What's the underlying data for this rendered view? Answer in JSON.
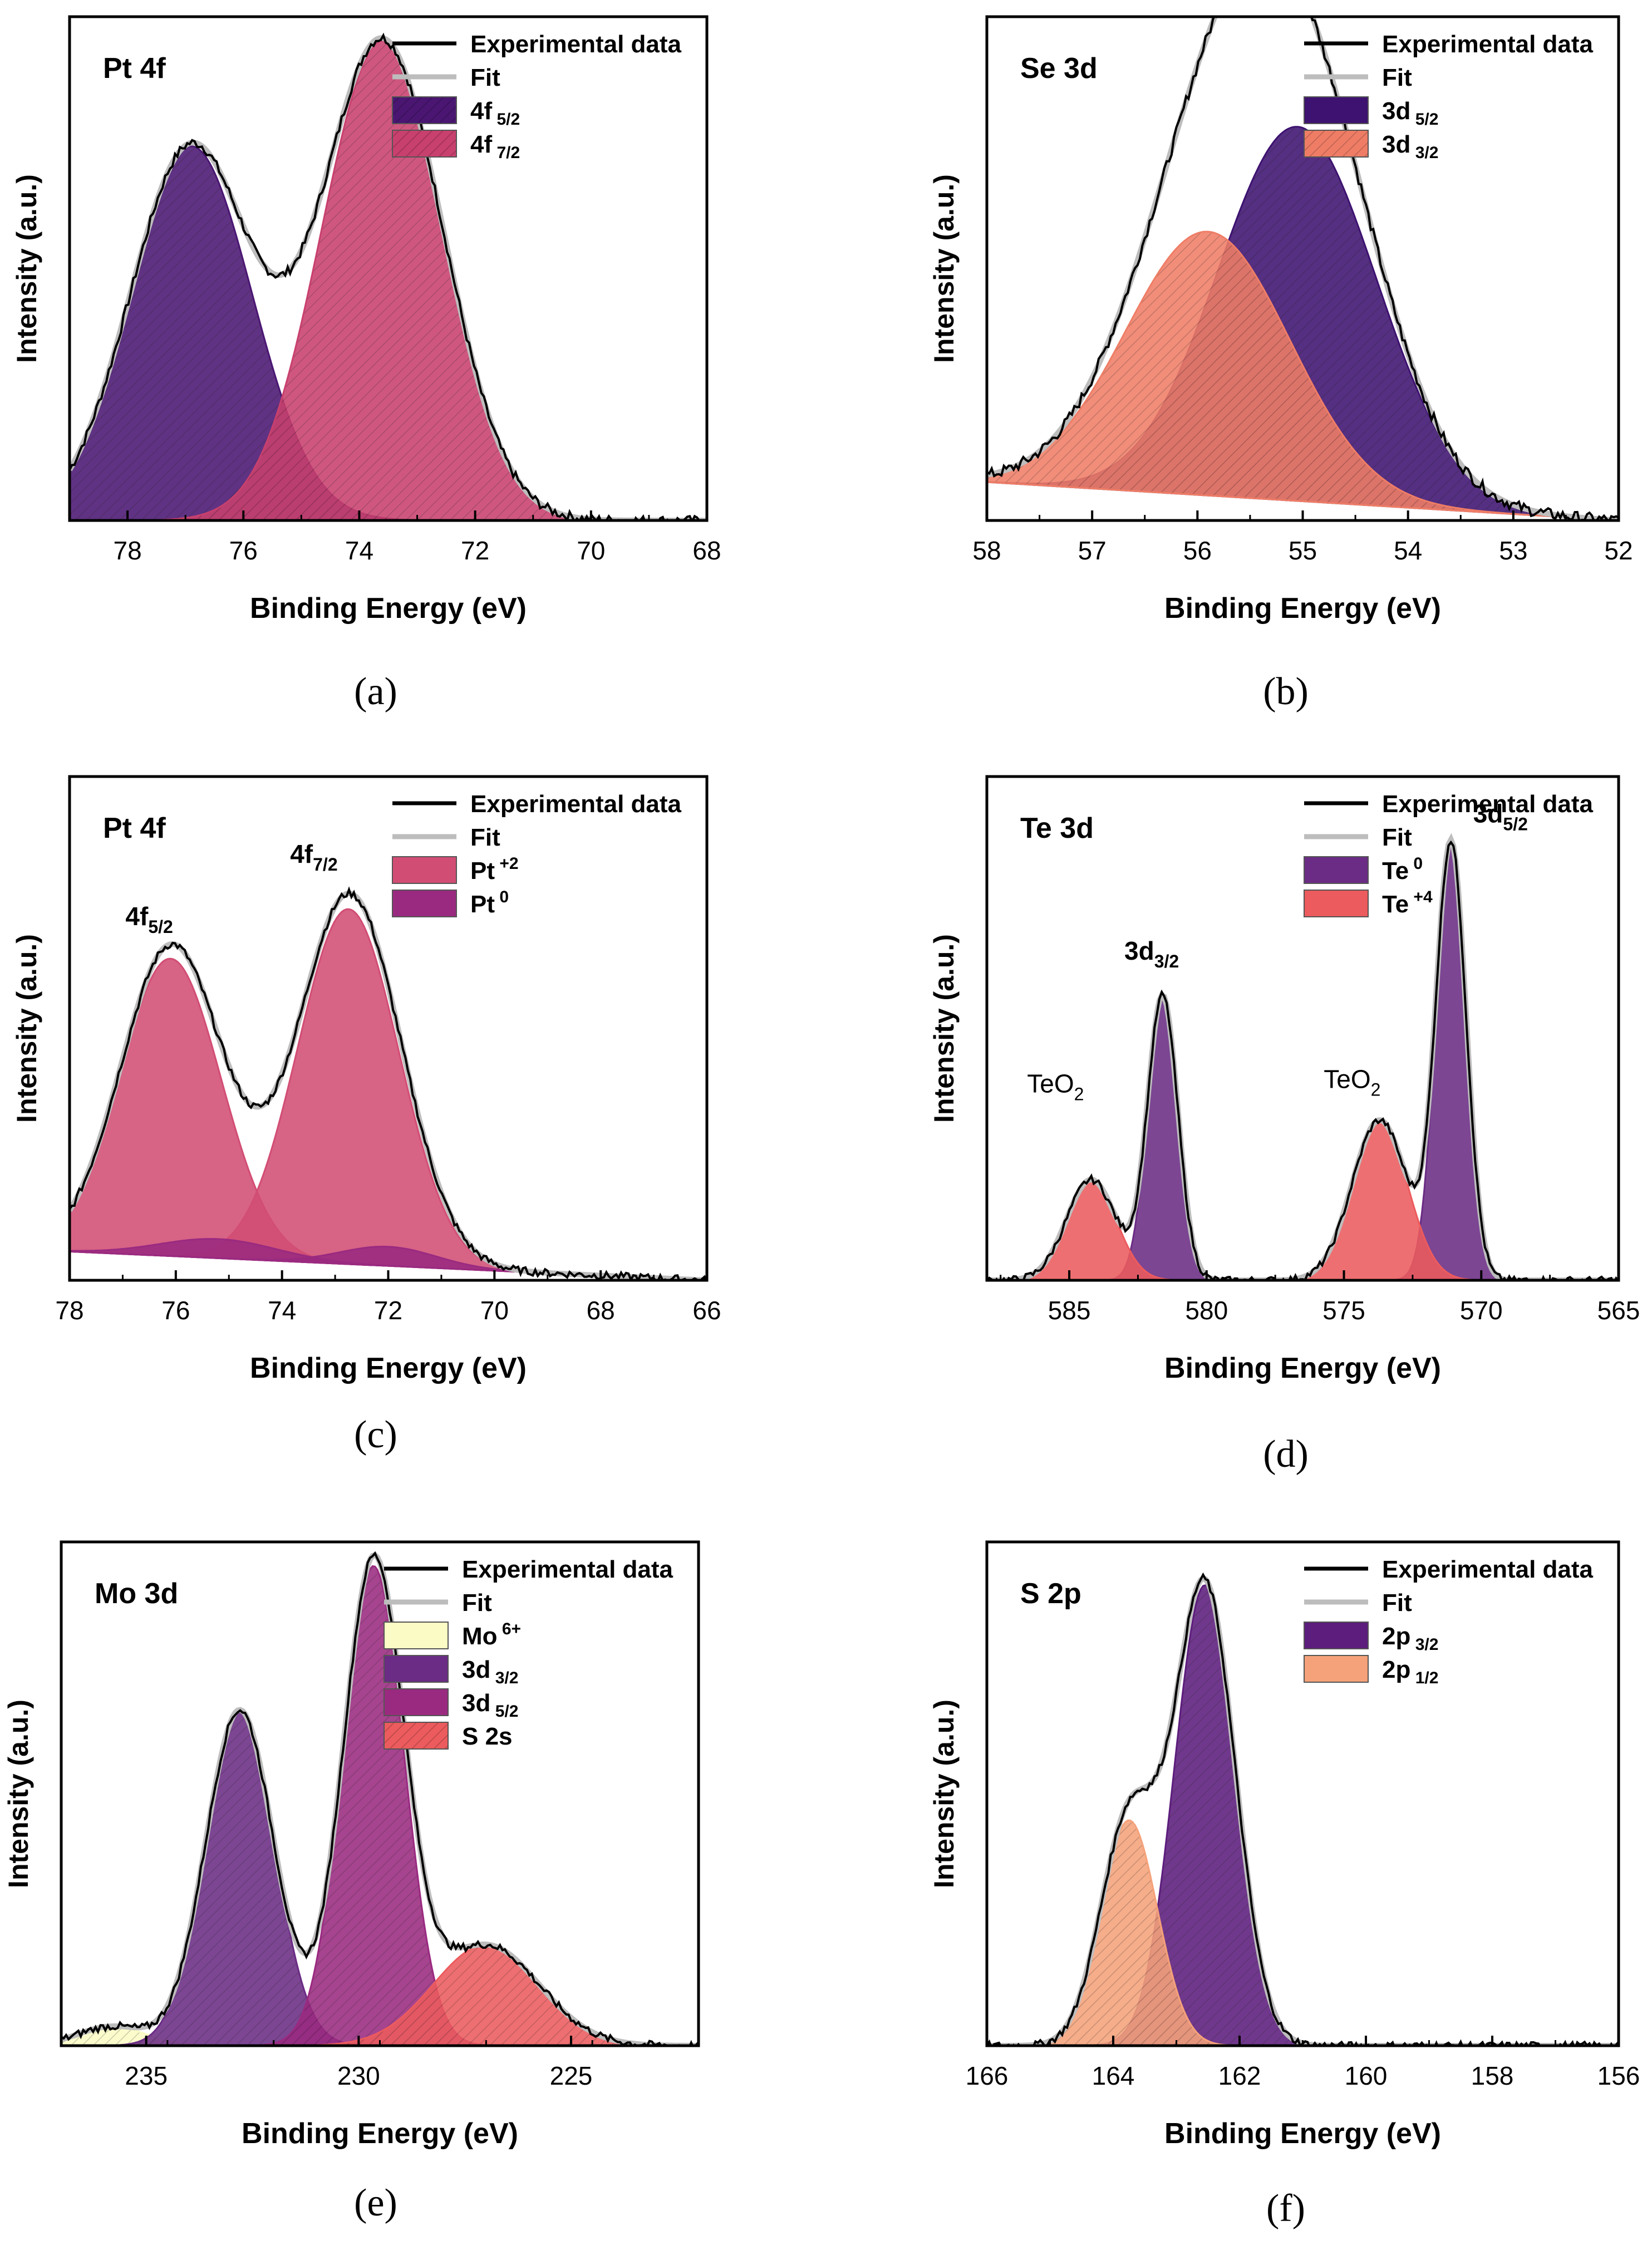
{
  "colors": {
    "experimental": "#000000",
    "fit": "#bdbdbd",
    "dark_purple": "#4a1672",
    "purple": "#6a2c84",
    "magenta": "#9a2a80",
    "crimson": "#c8406d",
    "rose": "#d24d74",
    "salmon": "#ec5b5d",
    "light_salmon": "#ef7d66",
    "peach": "#f5a27a",
    "pale_yellow": "#fafbc5"
  },
  "chart_data": [
    {
      "id": "a",
      "type": "line",
      "caption": "(a)",
      "title": "Pt 4f",
      "xlabel": "Binding Energy (eV)",
      "ylabel": "Intensity (a.u.)",
      "xlim": [
        79,
        68
      ],
      "ylim": [
        0,
        1.05
      ],
      "xticks": [
        78,
        76,
        74,
        72,
        70,
        68
      ],
      "baseline": [
        0.0,
        0.0
      ],
      "fit_peaks": [
        0,
        1
      ],
      "exp_noise": 0.01,
      "peaks": [
        {
          "name": "4f 5/2",
          "center": 76.9,
          "height": 0.78,
          "width": 1.05,
          "color": "#4a1672",
          "hatch": true
        },
        {
          "name": "4f 7/2",
          "center": 73.6,
          "height": 1.0,
          "width": 1.05,
          "color": "#c8406d",
          "hatch": true
        }
      ],
      "legend": [
        {
          "label": "Experimental data",
          "kind": "line",
          "color": "#000000"
        },
        {
          "label": "Fit",
          "kind": "line",
          "color": "#bdbdbd"
        },
        {
          "label": "4f",
          "sub": "5/2",
          "kind": "patch",
          "color": "#4a1672",
          "hatch": true
        },
        {
          "label": "4f",
          "sub": "7/2",
          "kind": "patch",
          "color": "#c8406d",
          "hatch": true
        }
      ],
      "annotations": []
    },
    {
      "id": "b",
      "type": "line",
      "caption": "(b)",
      "title": "Se 3d",
      "xlabel": "Binding Energy (eV)",
      "ylabel": "Intensity (a.u.)",
      "xlim": [
        58,
        52
      ],
      "ylim": [
        0,
        1.05
      ],
      "xticks": [
        58,
        57,
        56,
        55,
        54,
        53,
        52
      ],
      "baseline": [
        0.08,
        0.0
      ],
      "fit_peaks": [
        0,
        1
      ],
      "exp_noise": 0.012,
      "peaks": [
        {
          "name": "3d 5/2",
          "center": 55.05,
          "height": 0.78,
          "width": 0.75,
          "color": "#3d1270",
          "hatch": true
        },
        {
          "name": "3d 3/2",
          "center": 55.9,
          "height": 0.55,
          "width": 0.78,
          "color": "#ef7d66",
          "hatch": true
        }
      ],
      "legend": [
        {
          "label": "Experimental data",
          "kind": "line",
          "color": "#000000"
        },
        {
          "label": "Fit",
          "kind": "line",
          "color": "#bdbdbd"
        },
        {
          "label": "3d",
          "sub": "5/2",
          "kind": "patch",
          "color": "#3d1270",
          "hatch": false
        },
        {
          "label": "3d",
          "sub": "3/2",
          "kind": "patch",
          "color": "#ef7d66",
          "hatch": true
        }
      ],
      "annotations": []
    },
    {
      "id": "c",
      "type": "line",
      "caption": "(c)",
      "title": "Pt 4f",
      "xlabel": "Binding Energy (eV)",
      "ylabel": "Intensity (a.u.)",
      "xlim": [
        78,
        66
      ],
      "ylim": [
        0,
        1.05
      ],
      "xticks": [
        78,
        76,
        74,
        72,
        70,
        68,
        66
      ],
      "baseline": [
        0.06,
        0.0
      ],
      "fit_peaks": [
        0,
        1,
        2,
        3
      ],
      "exp_noise": 0.008,
      "peaks": [
        {
          "name": "Pt +2 4f5/2",
          "center": 76.1,
          "height": 0.62,
          "width": 0.95,
          "color": "#d24d74",
          "hatch": false
        },
        {
          "name": "Pt +2 4f7/2",
          "center": 72.75,
          "height": 0.74,
          "width": 0.95,
          "color": "#d24d74",
          "hatch": false
        },
        {
          "name": "Pt 0 a",
          "center": 75.2,
          "height": 0.04,
          "width": 1.1,
          "color": "#9a2a80",
          "hatch": false
        },
        {
          "name": "Pt 0 b",
          "center": 72.0,
          "height": 0.04,
          "width": 0.9,
          "color": "#9a2a80",
          "hatch": false
        }
      ],
      "legend": [
        {
          "label": "Experimental data",
          "kind": "line",
          "color": "#000000"
        },
        {
          "label": "Fit",
          "kind": "line",
          "color": "#bdbdbd"
        },
        {
          "label": "Pt",
          "sup": "+2",
          "kind": "patch",
          "color": "#d24d74",
          "hatch": false
        },
        {
          "label": "Pt",
          "sup": "0",
          "kind": "patch",
          "color": "#9a2a80",
          "hatch": false
        }
      ],
      "annotations": [
        {
          "text": "4f",
          "sub": "5/2",
          "x": 76.5,
          "y": 0.74
        },
        {
          "text": "4f",
          "sub": "7/2",
          "x": 73.4,
          "y": 0.87
        }
      ]
    },
    {
      "id": "d",
      "type": "line",
      "caption": "(d)",
      "title": "Te 3d",
      "xlabel": "Binding Energy (eV)",
      "ylabel": "Intensity (a.u.)",
      "xlim": [
        588,
        565
      ],
      "ylim": [
        0,
        1.1
      ],
      "xticks": [
        585,
        580,
        575,
        570,
        565
      ],
      "baseline": [
        0.0,
        0.0
      ],
      "fit_peaks": [
        0,
        1,
        2,
        3
      ],
      "exp_noise": 0.008,
      "peaks": [
        {
          "name": "Te 0 3d3/2",
          "center": 581.6,
          "height": 0.62,
          "width": 0.55,
          "color": "#6a2c84",
          "hatch": false
        },
        {
          "name": "Te 0 3d5/2",
          "center": 571.1,
          "height": 0.95,
          "width": 0.55,
          "color": "#6a2c84",
          "hatch": false
        },
        {
          "name": "Te +4 3d3/2",
          "center": 584.2,
          "height": 0.22,
          "width": 0.9,
          "color": "#ec5b5d",
          "hatch": false
        },
        {
          "name": "Te +4 3d5/2",
          "center": 573.7,
          "height": 0.35,
          "width": 1.0,
          "color": "#ec5b5d",
          "hatch": false
        }
      ],
      "legend": [
        {
          "label": "Experimental data",
          "kind": "line",
          "color": "#000000"
        },
        {
          "label": "Fit",
          "kind": "line",
          "color": "#bdbdbd"
        },
        {
          "label": "Te",
          "sup": "0",
          "kind": "patch",
          "color": "#6a2c84",
          "hatch": false
        },
        {
          "label": "Te",
          "sup": "+4",
          "kind": "patch",
          "color": "#ec5b5d",
          "hatch": false
        }
      ],
      "annotations": [
        {
          "text": "3d",
          "sub": "3/2",
          "x": 582.0,
          "y": 0.7
        },
        {
          "text": "3d",
          "sub": "5/2",
          "x": 569.3,
          "y": 1.0
        },
        {
          "text": "TeO",
          "sub": "2",
          "x": 585.5,
          "y": 0.41
        },
        {
          "text": "TeO",
          "sub": "2",
          "x": 574.7,
          "y": 0.42
        }
      ]
    },
    {
      "id": "e",
      "type": "line",
      "caption": "(e)",
      "title": "Mo 3d",
      "xlabel": "Binding Energy (eV)",
      "ylabel": "Intensity (a.u.)",
      "xlim": [
        237,
        222
      ],
      "ylim": [
        0,
        1.05
      ],
      "xticks": [
        235,
        230,
        225
      ],
      "baseline": [
        0.0,
        0.0
      ],
      "fit_peaks": [
        0,
        1,
        2,
        3
      ],
      "exp_noise": 0.008,
      "peaks": [
        {
          "name": "Mo 6+",
          "center": 235.8,
          "height": 0.04,
          "width": 0.8,
          "color": "#fafbc5",
          "hatch": true
        },
        {
          "name": "3d3/2",
          "center": 232.8,
          "height": 0.7,
          "width": 0.8,
          "color": "#6a2c84",
          "hatch": true
        },
        {
          "name": "3d5/2",
          "center": 229.65,
          "height": 1.0,
          "width": 0.72,
          "color": "#9a2a80",
          "hatch": true
        },
        {
          "name": "S 2s",
          "center": 227.0,
          "height": 0.21,
          "width": 1.25,
          "color": "#ec5b5d",
          "hatch": true
        }
      ],
      "legend": [
        {
          "label": "Experimental data",
          "kind": "line",
          "color": "#000000"
        },
        {
          "label": "Fit",
          "kind": "line",
          "color": "#bdbdbd"
        },
        {
          "label": "Mo",
          "sup": "6+",
          "kind": "patch",
          "color": "#fafbc5",
          "hatch": false
        },
        {
          "label": "3d",
          "sub": "3/2",
          "kind": "patch",
          "color": "#6a2c84",
          "hatch": false
        },
        {
          "label": "3d",
          "sub": "5/2",
          "kind": "patch",
          "color": "#9a2a80",
          "hatch": false
        },
        {
          "label": "S 2s",
          "kind": "patch",
          "color": "#ec5b5d",
          "hatch": true
        }
      ],
      "annotations": []
    },
    {
      "id": "f",
      "type": "line",
      "caption": "(f)",
      "title": "S 2p",
      "xlabel": "Binding Energy (eV)",
      "ylabel": "Intensity (a.u.)",
      "xlim": [
        166,
        156
      ],
      "ylim": [
        0,
        1.05
      ],
      "xticks": [
        166,
        164,
        162,
        160,
        158,
        156
      ],
      "baseline": [
        0.0,
        0.0
      ],
      "fit_peaks": [
        0,
        1
      ],
      "exp_noise": 0.008,
      "peaks": [
        {
          "name": "2p3/2",
          "center": 162.55,
          "height": 0.96,
          "width": 0.48,
          "color": "#5c1d7c",
          "hatch": true
        },
        {
          "name": "2p1/2",
          "center": 163.75,
          "height": 0.47,
          "width": 0.45,
          "color": "#f5a27a",
          "hatch": true
        }
      ],
      "legend": [
        {
          "label": "Experimental data",
          "kind": "line",
          "color": "#000000"
        },
        {
          "label": "Fit",
          "kind": "line",
          "color": "#bdbdbd"
        },
        {
          "label": "2p",
          "sub": "3/2",
          "kind": "patch",
          "color": "#5c1d7c",
          "hatch": false
        },
        {
          "label": "2p",
          "sub": "1/2",
          "kind": "patch",
          "color": "#f5a27a",
          "hatch": false
        }
      ],
      "annotations": []
    }
  ]
}
